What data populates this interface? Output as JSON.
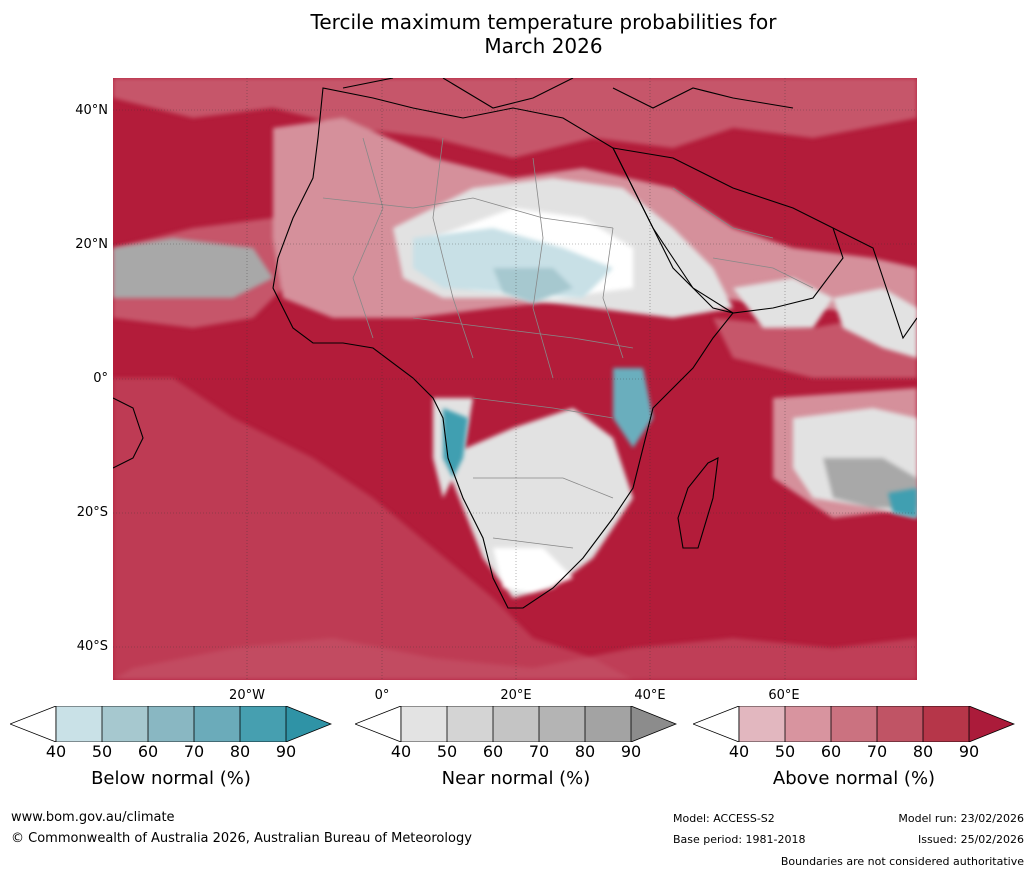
{
  "title_line1": "Tercile maximum temperature probabilities for",
  "title_line2": "March 2026",
  "map": {
    "lat_labels": [
      "40°N",
      "20°N",
      "0°",
      "20°S",
      "40°S"
    ],
    "lon_labels": [
      "20°W",
      "0°",
      "20°E",
      "40°E",
      "60°E"
    ],
    "colors": {
      "ocean_warm": "#b31c3a",
      "warm_mid": "#c6566a",
      "warm_light": "#d5909b",
      "near_normal": "#e2e2e2",
      "near_dark": "#a8a8a8",
      "below_light": "#c8e0e6",
      "below_mid": "#6aaebd",
      "below_dark": "#3f9fb1"
    }
  },
  "colorbars": {
    "below": {
      "ticks": [
        "40",
        "50",
        "60",
        "70",
        "80",
        "90"
      ],
      "title": "Below normal (%)",
      "colors": [
        "#c9e1e7",
        "#a6c8cf",
        "#89b7c2",
        "#6babba",
        "#469fb0",
        "#2f93a6"
      ]
    },
    "near": {
      "ticks": [
        "40",
        "50",
        "60",
        "70",
        "80",
        "90"
      ],
      "title": "Near normal (%)",
      "colors": [
        "#e3e3e3",
        "#d4d4d4",
        "#c4c4c4",
        "#b4b4b4",
        "#a3a3a3",
        "#8c8c8c"
      ]
    },
    "above": {
      "ticks": [
        "40",
        "50",
        "60",
        "70",
        "80",
        "90"
      ],
      "title": "Above normal (%)",
      "colors": [
        "#e2b7bf",
        "#d8949f",
        "#cb7280",
        "#c05465",
        "#b63649",
        "#ab1b3a"
      ]
    }
  },
  "footer": {
    "website": "www.bom.gov.au/climate",
    "copyright": "© Commonwealth of Australia 2026, Australian Bureau of Meteorology",
    "model": "Model: ACCESS-S2",
    "base_period": "Base period: 1981-2018",
    "model_run": "Model run: 23/02/2026",
    "issued": "Issued: 25/02/2026",
    "disclaimer": "Boundaries are not considered authoritative"
  }
}
